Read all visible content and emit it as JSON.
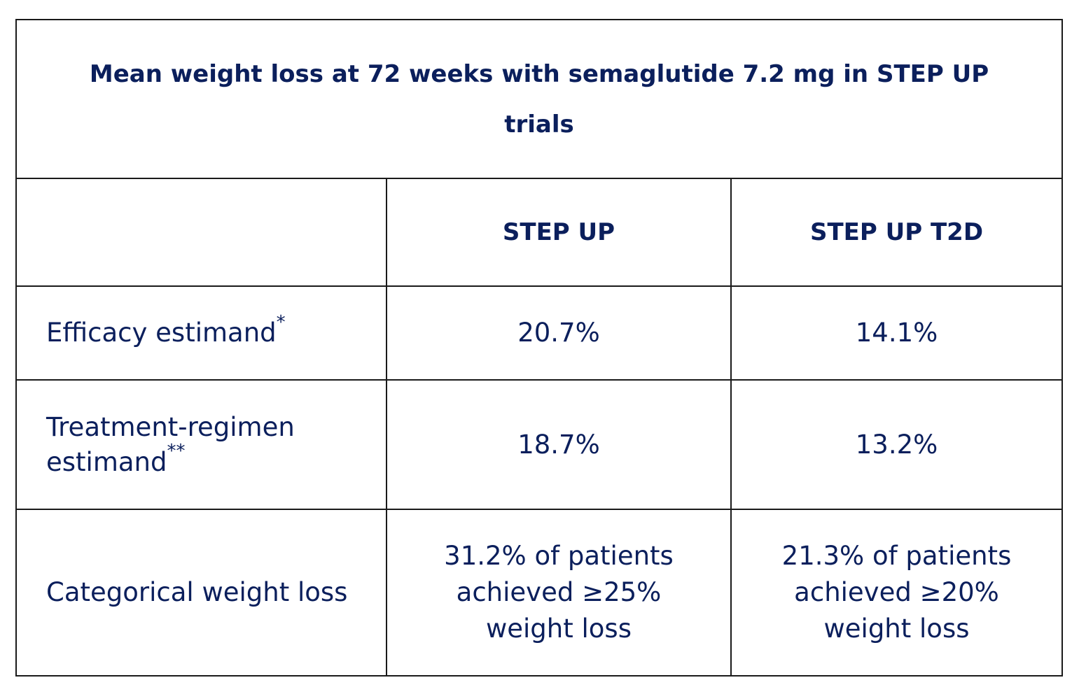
{
  "table": {
    "title": "Mean weight loss at 72 weeks with semaglutide 7.2 mg in STEP UP trials",
    "columns": [
      "",
      "STEP UP",
      "STEP UP T2D"
    ],
    "rows": [
      {
        "label": "Efficacy estimand",
        "marker": "*",
        "step_up": "20.7%",
        "step_up_t2d": "14.1%"
      },
      {
        "label": "Treatment-regimen estimand",
        "marker": "**",
        "step_up": "18.7%",
        "step_up_t2d": "13.2%"
      },
      {
        "label": "Categorical weight loss",
        "marker": "",
        "step_up": "31.2% of patients achieved ≥25% weight loss",
        "step_up_t2d": "21.3% of patients achieved ≥20% weight loss"
      }
    ]
  },
  "colors": {
    "text": "#0b1f5c",
    "border": "#1a1a1a",
    "background": "#ffffff"
  }
}
